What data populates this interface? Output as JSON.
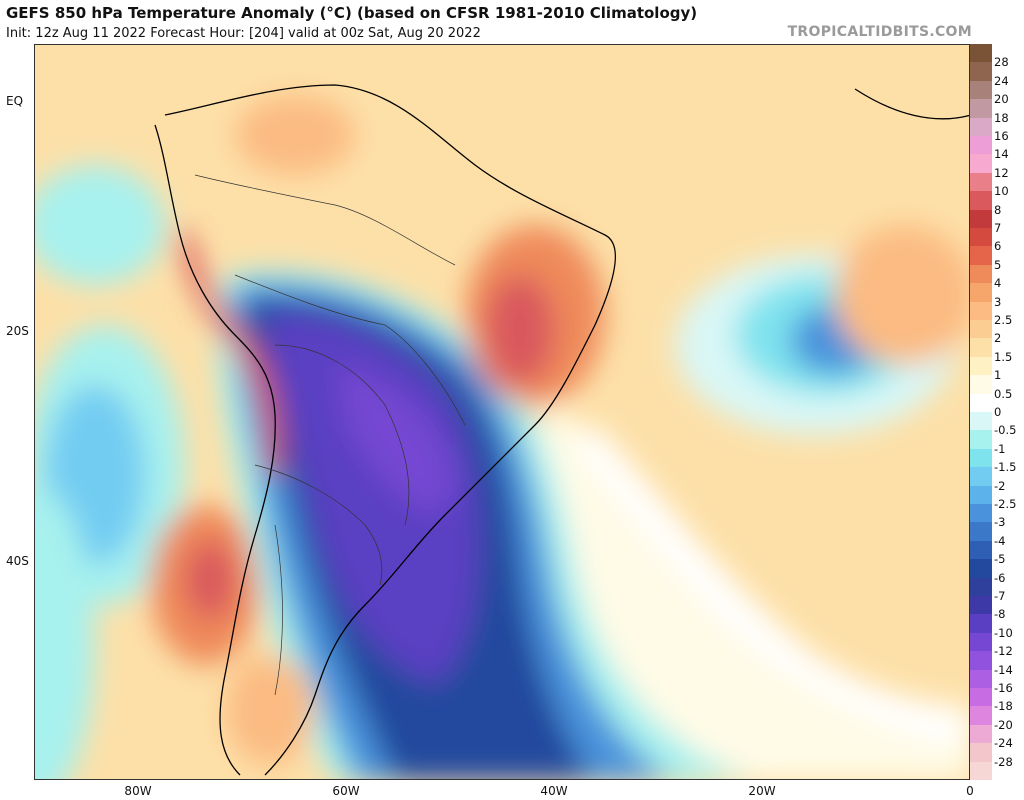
{
  "header": {
    "title": "GEFS 850 hPa Temperature Anomaly (°C) (based on CFSR 1981-2010 Climatology)",
    "subtitle": "Init: 12z Aug 11 2022   Forecast Hour: [204]   valid at 00z Sat, Aug 20 2022",
    "brand": "TROPICALTIDBITS.COM"
  },
  "axes": {
    "lat_labels": [
      {
        "text": "EQ",
        "lat": 0
      },
      {
        "text": "20S",
        "lat": -20
      },
      {
        "text": "40S",
        "lat": -40
      }
    ],
    "lon_labels": [
      {
        "text": "80W",
        "lon": -80
      },
      {
        "text": "60W",
        "lon": -60
      },
      {
        "text": "40W",
        "lon": -40
      },
      {
        "text": "20W",
        "lon": -20
      },
      {
        "text": "0",
        "lon": 0
      }
    ]
  },
  "colorbar": {
    "labels": [
      "28",
      "24",
      "20",
      "18",
      "16",
      "14",
      "12",
      "10",
      "8",
      "7",
      "6",
      "5",
      "4",
      "3",
      "2.5",
      "2",
      "1.5",
      "1",
      "0.5",
      "0",
      "-0.5",
      "-1",
      "-1.5",
      "-2",
      "-2.5",
      "-3",
      "-4",
      "-5",
      "-6",
      "-7",
      "-8",
      "-10",
      "-12",
      "-14",
      "-16",
      "-18",
      "-20",
      "-24",
      "-28"
    ],
    "colors": [
      "#7a5236",
      "#8f6550",
      "#a8827a",
      "#c099a3",
      "#d9a9c7",
      "#ee9ed7",
      "#f7a9cf",
      "#e97f88",
      "#d9595d",
      "#c33a3c",
      "#d54a3f",
      "#e5654a",
      "#ef8a5a",
      "#f6a56b",
      "#fbbb82",
      "#fccd93",
      "#fde0a8",
      "#fef2c4",
      "#fffbe6",
      "#ffffff",
      "#d9f7f6",
      "#a7f1ee",
      "#7fe3ee",
      "#72ccf2",
      "#5cb2ea",
      "#4a93dc",
      "#3b78c8",
      "#2f5fb4",
      "#23499e",
      "#2f3f9c",
      "#3d3aa8",
      "#5a3fc2",
      "#7547d2",
      "#9152dd",
      "#ad5fe3",
      "#c86ce4",
      "#dd85df",
      "#ecaad5",
      "#f3c6cc"
    ]
  },
  "map": {
    "field": "850 hPa temperature anomaly",
    "lon_range": [
      -90,
      0
    ],
    "lat_range": [
      -59,
      5
    ]
  }
}
